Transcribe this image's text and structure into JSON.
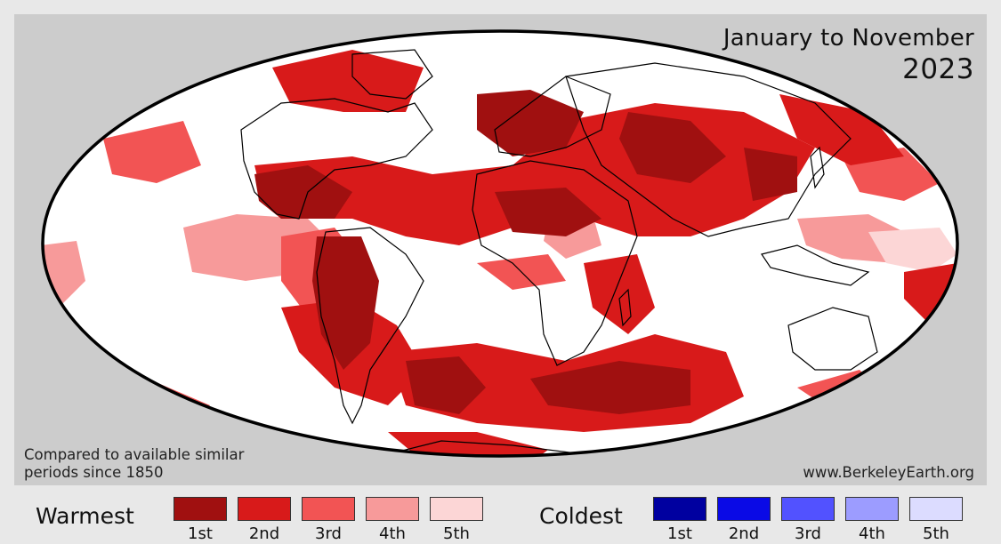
{
  "title": "January to November",
  "year": "2023",
  "note": "Compared to available similar periods since 1850",
  "source": "www.BerkeleyEarth.org",
  "legend": {
    "warmest": {
      "title": "Warmest",
      "items": [
        {
          "label": "1st",
          "color": "#a01010"
        },
        {
          "label": "2nd",
          "color": "#d81a1a"
        },
        {
          "label": "3rd",
          "color": "#f25454"
        },
        {
          "label": "4th",
          "color": "#f79a9a"
        },
        {
          "label": "5th",
          "color": "#fcd6d6"
        }
      ]
    },
    "coldest": {
      "title": "Coldest",
      "items": [
        {
          "label": "1st",
          "color": "#0000a0"
        },
        {
          "label": "2nd",
          "color": "#0a0ae6"
        },
        {
          "label": "3rd",
          "color": "#5252ff"
        },
        {
          "label": "4th",
          "color": "#9c9cff"
        },
        {
          "label": "5th",
          "color": "#dcdcff"
        }
      ]
    }
  },
  "colors": {
    "background": "#cccccc",
    "land_outline": "#000000",
    "globe_fill": "#ffffff"
  }
}
